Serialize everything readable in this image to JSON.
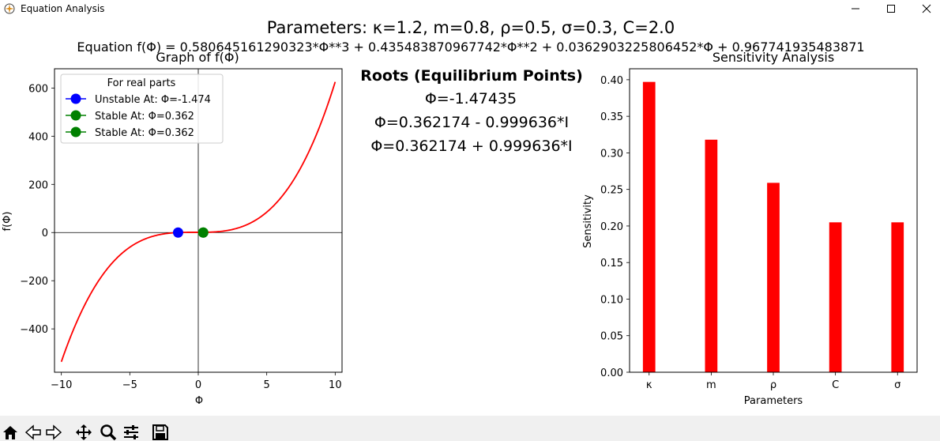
{
  "window": {
    "title": "Equation Analysis",
    "controls": [
      "minimize-icon",
      "maximize-icon",
      "close-icon"
    ]
  },
  "figure": {
    "suptitle": "Parameters: κ=1.2, m=0.8, ρ=0.5, σ=0.3, C=2.0",
    "equation": "Equation f(Φ) = 0.580645161290323*Φ**3 + 0.435483870967742*Φ**2 + 0.0362903225806452*Φ + 0.967741935483871"
  },
  "roots_panel": {
    "title": "Roots (Equilibrium Points)",
    "roots": [
      "Φ=-1.47435",
      "Φ=0.362174 - 0.999636*I",
      "Φ=0.362174 + 0.999636*I"
    ]
  },
  "chart_data": [
    {
      "type": "line",
      "title": "Graph of f(Φ)",
      "xlabel": "Φ",
      "ylabel": "f(Φ)",
      "xlim": [
        -10.5,
        10.5
      ],
      "ylim": [
        -580,
        680
      ],
      "xticks": [
        -10,
        -5,
        0,
        5,
        10
      ],
      "yticks": [
        -400,
        -200,
        0,
        200,
        400,
        600
      ],
      "grid": false,
      "series": [
        {
          "color": "#ff0000",
          "x_range": [
            -10,
            10
          ],
          "polynomial_coefficients": [
            0.580645161290323,
            0.435483870967742,
            0.0362903225806452,
            0.967741935483871
          ]
        }
      ],
      "points": [
        {
          "name": "Unstable At: Φ=-1.474",
          "x": -1.474,
          "y": 0,
          "color": "#0000ff"
        },
        {
          "name": "Stable At: Φ=0.362",
          "x": 0.362,
          "y": 0,
          "color": "#008000"
        },
        {
          "name": "Stable At: Φ=0.362",
          "x": 0.362,
          "y": 0,
          "color": "#008000"
        }
      ],
      "legend": {
        "title": "For real parts",
        "placement": "upper-left",
        "entries": [
          "Unstable At: Φ=-1.474",
          "Stable At: Φ=0.362",
          "Stable At: Φ=0.362"
        ]
      }
    },
    {
      "type": "bar",
      "title": "Sensitivity Analysis",
      "xlabel": "Parameters",
      "ylabel": "Sensitivity",
      "categories": [
        "κ",
        "m",
        "ρ",
        "C",
        "σ"
      ],
      "values": [
        0.397,
        0.318,
        0.259,
        0.205,
        0.205
      ],
      "ylim": [
        0,
        0.415
      ],
      "yticks": [
        0.0,
        0.05,
        0.1,
        0.15,
        0.2,
        0.25,
        0.3,
        0.35,
        0.4
      ],
      "ytick_labels": [
        "0.00",
        "0.05",
        "0.10",
        "0.15",
        "0.20",
        "0.25",
        "0.30",
        "0.35",
        "0.40"
      ],
      "color": "#ff0000",
      "grid": false
    }
  ],
  "toolbar": {
    "icons": [
      "home-icon",
      "back-icon",
      "forward-icon",
      "pan-icon",
      "zoom-icon",
      "configure-subplots-icon",
      "save-icon"
    ]
  }
}
